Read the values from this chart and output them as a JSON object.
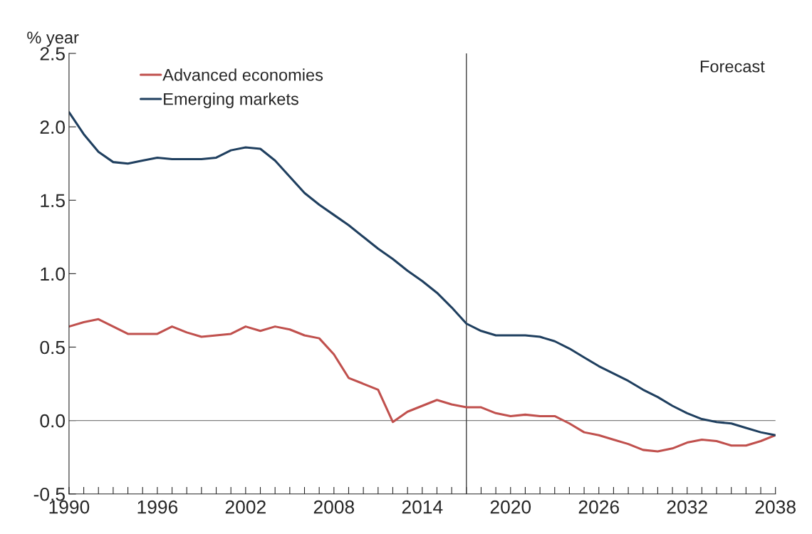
{
  "chart_data": {
    "type": "line",
    "ylabel": "% year",
    "x": [
      1990,
      1991,
      1992,
      1993,
      1994,
      1995,
      1996,
      1997,
      1998,
      1999,
      2000,
      2001,
      2002,
      2003,
      2004,
      2005,
      2006,
      2007,
      2008,
      2009,
      2010,
      2011,
      2012,
      2013,
      2014,
      2015,
      2016,
      2017,
      2018,
      2019,
      2020,
      2021,
      2022,
      2023,
      2024,
      2025,
      2026,
      2027,
      2028,
      2029,
      2030,
      2031,
      2032,
      2033,
      2034,
      2035,
      2036,
      2037,
      2038
    ],
    "series": [
      {
        "name": "Advanced economies",
        "color": "#c0504d",
        "values": [
          0.64,
          0.67,
          0.69,
          0.64,
          0.59,
          0.59,
          0.59,
          0.64,
          0.6,
          0.57,
          0.58,
          0.59,
          0.64,
          0.61,
          0.64,
          0.62,
          0.58,
          0.56,
          0.45,
          0.29,
          0.25,
          0.21,
          -0.01,
          0.06,
          0.1,
          0.14,
          0.11,
          0.09,
          0.09,
          0.05,
          0.03,
          0.04,
          0.03,
          0.03,
          -0.02,
          -0.08,
          -0.1,
          -0.13,
          -0.16,
          -0.2,
          -0.21,
          -0.19,
          -0.15,
          -0.13,
          -0.14,
          -0.17,
          -0.17,
          -0.14,
          -0.1
        ]
      },
      {
        "name": "Emerging markets",
        "color": "#1f3f5f",
        "values": [
          2.1,
          1.95,
          1.83,
          1.76,
          1.75,
          1.77,
          1.79,
          1.78,
          1.78,
          1.78,
          1.79,
          1.84,
          1.86,
          1.85,
          1.77,
          1.66,
          1.55,
          1.47,
          1.4,
          1.33,
          1.25,
          1.17,
          1.1,
          1.02,
          0.95,
          0.87,
          0.77,
          0.66,
          0.61,
          0.58,
          0.58,
          0.58,
          0.57,
          0.54,
          0.49,
          0.43,
          0.37,
          0.32,
          0.27,
          0.21,
          0.16,
          0.1,
          0.05,
          0.01,
          -0.01,
          -0.02,
          -0.05,
          -0.08,
          -0.1
        ]
      }
    ],
    "xlim": [
      1990,
      2038
    ],
    "xticks": [
      1990,
      {
        "value": 1991,
        "label": null
      },
      {
        "value": 1992,
        "label": null
      },
      {
        "value": 1993,
        "label": null
      },
      {
        "value": 1994,
        "label": null
      },
      {
        "value": 1995,
        "label": null
      },
      1996,
      {
        "value": 1997,
        "label": null
      },
      {
        "value": 1998,
        "label": null
      },
      {
        "value": 1999,
        "label": null
      },
      {
        "value": 2000,
        "label": null
      },
      {
        "value": 2001,
        "label": null
      },
      2002,
      {
        "value": 2003,
        "label": null
      },
      {
        "value": 2004,
        "label": null
      },
      {
        "value": 2005,
        "label": null
      },
      {
        "value": 2006,
        "label": null
      },
      {
        "value": 2007,
        "label": null
      },
      2008,
      {
        "value": 2009,
        "label": null
      },
      {
        "value": 2010,
        "label": null
      },
      {
        "value": 2011,
        "label": null
      },
      {
        "value": 2012,
        "label": null
      },
      {
        "value": 2013,
        "label": null
      },
      2014,
      {
        "value": 2015,
        "label": null
      },
      {
        "value": 2016,
        "label": null
      },
      {
        "value": 2017,
        "label": null
      },
      {
        "value": 2018,
        "label": null
      },
      {
        "value": 2019,
        "label": null
      },
      2020,
      {
        "value": 2021,
        "label": null
      },
      {
        "value": 2022,
        "label": null
      },
      {
        "value": 2023,
        "label": null
      },
      {
        "value": 2024,
        "label": null
      },
      {
        "value": 2025,
        "label": null
      },
      2026,
      {
        "value": 2027,
        "label": null
      },
      {
        "value": 2028,
        "label": null
      },
      {
        "value": 2029,
        "label": null
      },
      {
        "value": 2030,
        "label": null
      },
      {
        "value": 2031,
        "label": null
      },
      2032,
      {
        "value": 2033,
        "label": null
      },
      {
        "value": 2034,
        "label": null
      },
      {
        "value": 2035,
        "label": null
      },
      {
        "value": 2036,
        "label": null
      },
      {
        "value": 2037,
        "label": null
      },
      2038
    ],
    "ylim": [
      -0.5,
      2.5
    ],
    "yticks": [
      {
        "value": -0.5,
        "label": "-0.5"
      },
      {
        "value": 0,
        "label": "0.0"
      },
      {
        "value": 0.5,
        "label": "0.5"
      },
      {
        "value": 1,
        "label": "1.0"
      },
      {
        "value": 1.5,
        "label": "1.5"
      },
      {
        "value": 2,
        "label": "2.0"
      },
      {
        "value": 2.5,
        "label": "2.5"
      }
    ],
    "ref_lines": [
      {
        "axis": "y",
        "value": 0,
        "color": "#808080"
      },
      {
        "axis": "x",
        "value": 2017,
        "color": "#404040"
      }
    ],
    "annotations": [
      "Forecast"
    ],
    "legend": "top left",
    "grid": false,
    "marker": "none",
    "line_style": "solid"
  }
}
